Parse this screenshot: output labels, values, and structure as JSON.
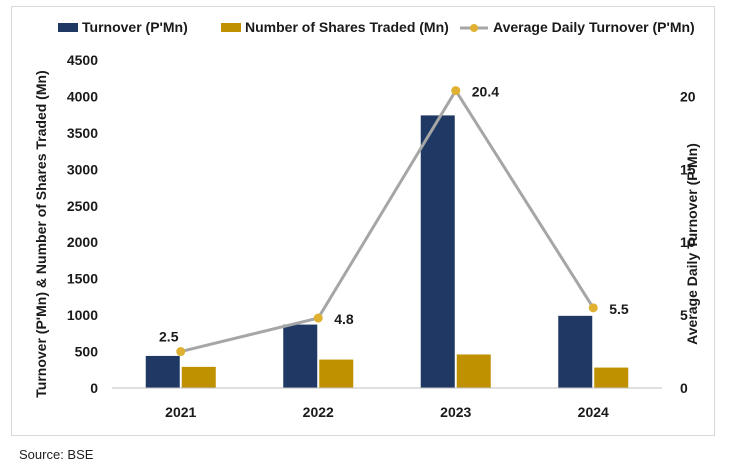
{
  "chart_data": {
    "type": "bar",
    "categories": [
      "2021",
      "2022",
      "2023",
      "2024"
    ],
    "series": [
      {
        "name": "Turnover (P'Mn)",
        "kind": "bar",
        "axis": "left",
        "color": "#1f3864",
        "values": [
          440,
          870,
          3740,
          990
        ]
      },
      {
        "name": "Number of Shares Traded (Mn)",
        "kind": "bar",
        "axis": "left",
        "color": "#bf9000",
        "values": [
          290,
          390,
          460,
          280
        ]
      },
      {
        "name": "Average Daily Turnover (P'Mn)",
        "kind": "line",
        "axis": "right",
        "color": "#a6a6a6",
        "marker_color": "#e0b030",
        "values": [
          2.5,
          4.8,
          20.4,
          5.5
        ],
        "labels": [
          "2.5",
          "4.8",
          "20.4",
          "5.5"
        ]
      }
    ],
    "ylabel": "Turnover (P'Mn) & Number of Shares Traded (Mn)",
    "y2label": "Average Daily Turnover (P'Mn)",
    "ylim": [
      0,
      4500
    ],
    "y2lim": [
      0,
      22.5
    ],
    "yticks": [
      "0",
      "500",
      "1000",
      "1500",
      "2000",
      "2500",
      "3000",
      "3500",
      "4000",
      "4500"
    ],
    "y2ticks": [
      "0",
      "5",
      "10",
      "15",
      "20"
    ],
    "legend": "top",
    "grid": false
  },
  "source": "Source: BSE"
}
